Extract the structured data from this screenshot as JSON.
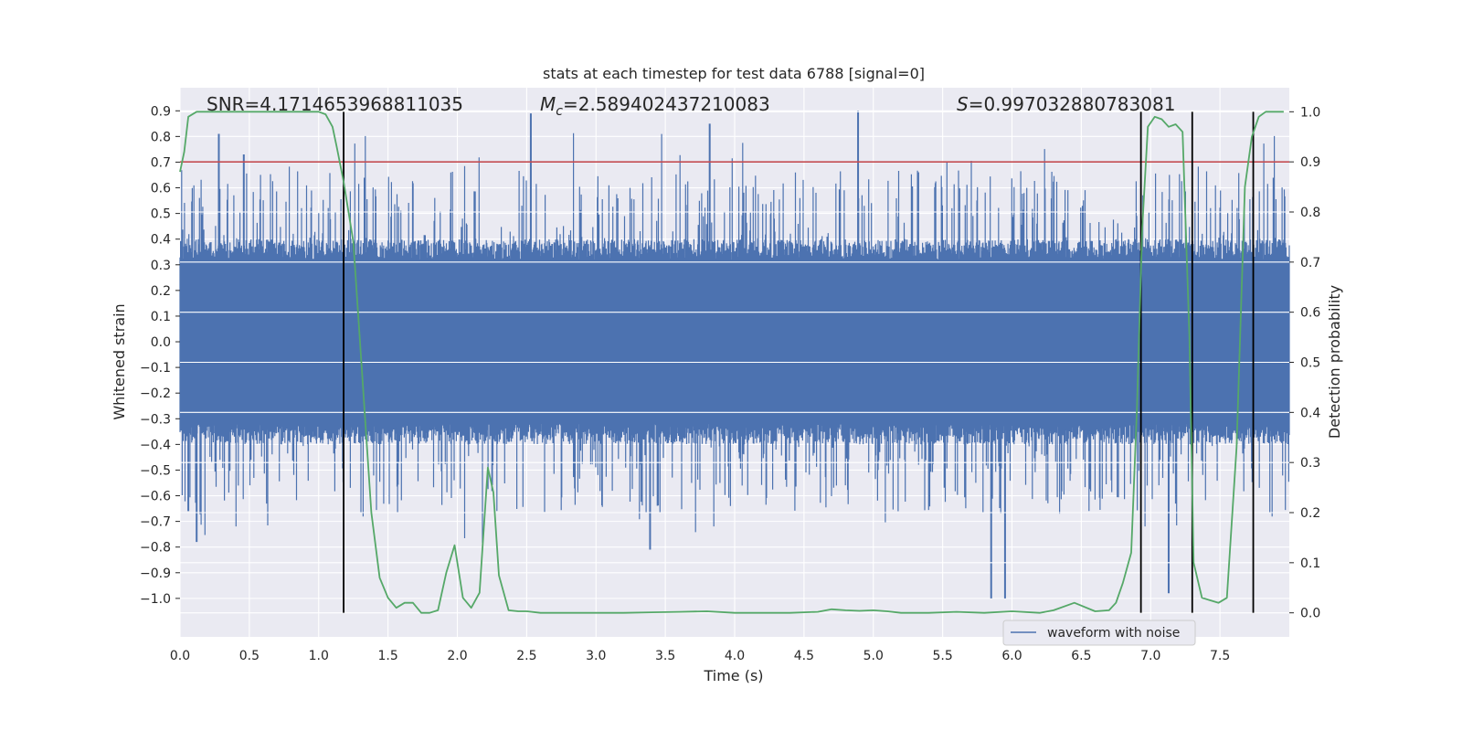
{
  "chart_data": {
    "type": "line",
    "title": "stats at each timestep for test data 6788 [signal=0]",
    "xlabel": "Time (s)",
    "ylabel": "Whitened strain",
    "y2label": "Detection probability",
    "xlim": [
      0.0,
      8.0
    ],
    "ylim": [
      -1.15,
      0.99
    ],
    "y2lim": [
      -0.048,
      1.048
    ],
    "xticks": [
      "0.0",
      "0.5",
      "1.0",
      "1.5",
      "2.0",
      "2.5",
      "3.0",
      "3.5",
      "4.0",
      "4.5",
      "5.0",
      "5.5",
      "6.0",
      "6.5",
      "7.0",
      "7.5"
    ],
    "yticks": [
      "0.9",
      "0.8",
      "0.7",
      "0.6",
      "0.5",
      "0.4",
      "0.3",
      "0.2",
      "0.1",
      "0.0",
      "−0.1",
      "−0.2",
      "−0.3",
      "−0.4",
      "−0.5",
      "−0.6",
      "−0.7",
      "−0.8",
      "−0.9",
      "−1.0"
    ],
    "y2ticks": [
      "1.0",
      "0.9",
      "0.8",
      "0.7",
      "0.6",
      "0.5",
      "0.4",
      "0.3",
      "0.2",
      "0.1",
      "0.0"
    ],
    "annotations": {
      "snr": "SNR=4.1714653968811035",
      "mc_symbol": "M",
      "mc_sub": "c",
      "mc_value": "=2.589402437210083",
      "s_symbol": "S",
      "s_value": "=0.997032880783081"
    },
    "threshold": {
      "value": 0.9,
      "axis": "y2",
      "color": "#c44e52"
    },
    "detection_lines_x": [
      1.18,
      6.93,
      7.3,
      7.74
    ],
    "waveform": {
      "name": "waveform with noise",
      "color": "#4c72b0",
      "x_range": [
        0.0,
        8.0
      ],
      "typical_amplitude": 0.32,
      "spike_amplitude": 0.55,
      "notable_peaks": [
        [
          0.28,
          0.81
        ],
        [
          0.46,
          0.73
        ],
        [
          2.53,
          0.89
        ],
        [
          3.82,
          0.85
        ],
        [
          4.89,
          0.9
        ],
        [
          5.85,
          -1.0
        ],
        [
          5.95,
          -1.0
        ],
        [
          3.39,
          -0.81
        ],
        [
          0.12,
          -0.78
        ],
        [
          0.06,
          -0.66
        ],
        [
          7.13,
          -0.98
        ]
      ]
    },
    "probability": {
      "name": "detection probability",
      "color": "#55a868",
      "axis": "y2",
      "x": [
        0.0,
        0.03,
        0.06,
        0.12,
        0.2,
        0.3,
        0.4,
        0.5,
        0.6,
        0.7,
        0.8,
        0.9,
        1.0,
        1.05,
        1.1,
        1.13,
        1.18,
        1.25,
        1.32,
        1.38,
        1.44,
        1.5,
        1.56,
        1.62,
        1.68,
        1.74,
        1.8,
        1.86,
        1.92,
        1.98,
        2.04,
        2.1,
        2.16,
        2.22,
        2.26,
        2.3,
        2.37,
        2.44,
        2.5,
        2.6,
        2.8,
        3.0,
        3.2,
        3.4,
        3.6,
        3.8,
        4.0,
        4.2,
        4.4,
        4.6,
        4.7,
        4.8,
        4.9,
        5.0,
        5.1,
        5.2,
        5.4,
        5.6,
        5.8,
        6.0,
        6.2,
        6.3,
        6.45,
        6.6,
        6.7,
        6.75,
        6.8,
        6.86,
        6.9,
        6.94,
        6.98,
        7.03,
        7.08,
        7.13,
        7.18,
        7.23,
        7.28,
        7.31,
        7.37,
        7.43,
        7.49,
        7.55,
        7.62,
        7.68,
        7.73,
        7.78,
        7.83,
        7.89,
        7.96
      ],
      "values": [
        0.88,
        0.92,
        0.99,
        1.0,
        1.0,
        1.0,
        1.0,
        1.0,
        1.0,
        1.0,
        1.0,
        1.0,
        1.0,
        0.995,
        0.97,
        0.93,
        0.86,
        0.74,
        0.45,
        0.2,
        0.07,
        0.03,
        0.01,
        0.02,
        0.02,
        0.0,
        0.0,
        0.005,
        0.08,
        0.135,
        0.03,
        0.01,
        0.04,
        0.29,
        0.24,
        0.075,
        0.005,
        0.003,
        0.003,
        0.0,
        0.0,
        0.0,
        0.0,
        0.001,
        0.002,
        0.003,
        0.0,
        0.0,
        0.0,
        0.002,
        0.007,
        0.005,
        0.004,
        0.005,
        0.003,
        0.0,
        0.0,
        0.002,
        0.0,
        0.003,
        0.0,
        0.005,
        0.02,
        0.003,
        0.005,
        0.02,
        0.06,
        0.12,
        0.4,
        0.77,
        0.97,
        0.99,
        0.985,
        0.97,
        0.975,
        0.96,
        0.55,
        0.1,
        0.03,
        0.025,
        0.02,
        0.03,
        0.33,
        0.85,
        0.95,
        0.99,
        1.0,
        1.0,
        1.0
      ]
    },
    "legend": {
      "entries": [
        "waveform with noise"
      ],
      "placement": "lower-right"
    },
    "grid": true
  }
}
